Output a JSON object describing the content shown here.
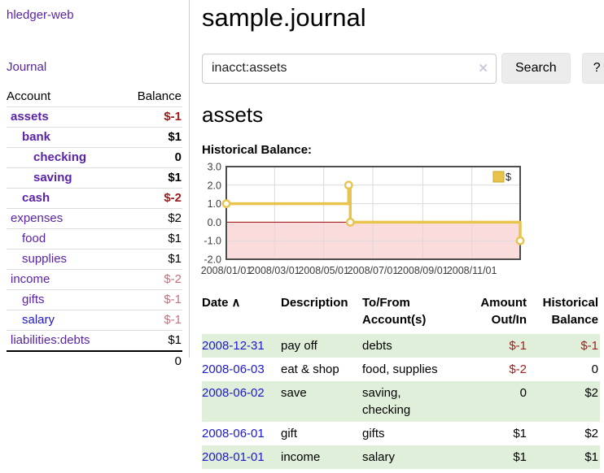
{
  "sidebar": {
    "brand": "hledger-web",
    "journal_link": "Journal",
    "accounts_table": {
      "headers": {
        "account": "Account",
        "balance": "Balance"
      },
      "rows": [
        {
          "name": "assets",
          "balance": "$-1"
        },
        {
          "name": "bank",
          "balance": "$1"
        },
        {
          "name": "checking",
          "balance": "0"
        },
        {
          "name": "saving",
          "balance": "$1"
        },
        {
          "name": "cash",
          "balance": "$-2"
        },
        {
          "name": "expenses",
          "balance": "$2"
        },
        {
          "name": "food",
          "balance": "$1"
        },
        {
          "name": "supplies",
          "balance": "$1"
        },
        {
          "name": "income",
          "balance": "$-2"
        },
        {
          "name": "gifts",
          "balance": "$-1"
        },
        {
          "name": "salary",
          "balance": "$-1"
        },
        {
          "name": "liabilities:debts",
          "balance": "$1"
        }
      ],
      "total": "0"
    }
  },
  "header": {
    "title": "sample.journal"
  },
  "search": {
    "value": "inacct:assets",
    "clear_icon": "✕",
    "search_label": "Search",
    "help_label": "?"
  },
  "account_page": {
    "title": "assets",
    "chart_label": "Historical Balance:"
  },
  "chart_data": {
    "type": "line",
    "title": "Historical Balance",
    "series": [
      {
        "name": "$",
        "color": "#e8c44c",
        "step": true,
        "points": [
          {
            "x": "2008-01-01",
            "y": 1
          },
          {
            "x": "2008-06-01",
            "y": 2
          },
          {
            "x": "2008-06-03",
            "y": 0
          },
          {
            "x": "2008-12-31",
            "y": -1
          }
        ]
      }
    ],
    "x_range": [
      "2008-01-01",
      "2008-12-31"
    ],
    "x_ticks": [
      {
        "date": "2008-01-01",
        "label": "2008/01/01"
      },
      {
        "date": "2008-03-01",
        "label": "2008/03/01"
      },
      {
        "date": "2008-05-01",
        "label": "2008/05/01"
      },
      {
        "date": "2008-07-01",
        "label": "2008/07/01"
      },
      {
        "date": "2008-09-01",
        "label": "2008/09/01"
      },
      {
        "date": "2008-11-01",
        "label": "2008/11/01"
      }
    ],
    "y_ticks": [
      3.0,
      2.0,
      1.0,
      0.0,
      -1.0,
      -2.0
    ],
    "ylim": [
      -2,
      3
    ],
    "grid": true,
    "legend": {
      "position": "top-right"
    },
    "negative_region_color": "#fbdcdc",
    "zero_line_color": "#9c0a0a"
  },
  "register": {
    "sort_caret": "∧",
    "headers": {
      "date": "Date",
      "description": "Description",
      "accounts": "To/From Account(s)",
      "amount": "Amount Out/In",
      "balance": "Historical Balance"
    },
    "rows": [
      {
        "date": "2008-12-31",
        "description": "pay off",
        "accounts": "debts",
        "amount": "$-1",
        "balance": "$-1"
      },
      {
        "date": "2008-06-03",
        "description": "eat & shop",
        "accounts": "food, supplies",
        "amount": "$-2",
        "balance": "0"
      },
      {
        "date": "2008-06-02",
        "description": "save",
        "accounts": "saving, checking",
        "amount": "0",
        "balance": "$2"
      },
      {
        "date": "2008-06-01",
        "description": "gift",
        "accounts": "gifts",
        "amount": "$1",
        "balance": "$2"
      },
      {
        "date": "2008-01-01",
        "description": "income",
        "accounts": "salary",
        "amount": "$1",
        "balance": "$1"
      }
    ]
  },
  "colors": {
    "link_purple": "#5a23a8",
    "link_blue": "#1b18cf",
    "negative_strong": "#9d1a1a",
    "negative_muted": "#c4707d",
    "register_negative": "#9b2020",
    "row_green": "#e0efd9",
    "series_gold": "#e8c44c"
  }
}
